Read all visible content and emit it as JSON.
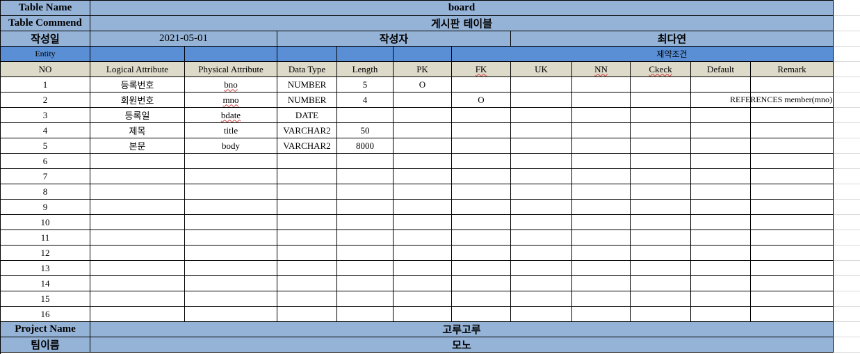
{
  "header": {
    "table_name_label": "Table Name",
    "table_name_value": "board",
    "table_comment_label": "Table Commend",
    "table_comment_value": "게시판 테이블",
    "created_label": "작성일",
    "created_value": "2021-05-01",
    "author_label": "작성자",
    "author_value": "최다연",
    "entity_label": "Entity",
    "constraints_label": "제약조건"
  },
  "columns": [
    "NO",
    "Logical Attribute",
    "Physical Attribute",
    "Data Type",
    "Length",
    "PK",
    "FK",
    "UK",
    "NN",
    "Ckeck",
    "Default",
    "Remark"
  ],
  "rows": [
    {
      "no": "1",
      "logical": "등록번호",
      "physical": "bno",
      "type": "NUMBER",
      "length": "5",
      "pk": "O",
      "fk": "",
      "uk": "",
      "nn": "",
      "check": "",
      "default": "",
      "remark": ""
    },
    {
      "no": "2",
      "logical": "회원번호",
      "physical": "mno",
      "type": "NUMBER",
      "length": "4",
      "pk": "",
      "fk": "O",
      "uk": "",
      "nn": "",
      "check": "",
      "default": "",
      "remark": "REFERENCES member(mno)"
    },
    {
      "no": "3",
      "logical": "등록일",
      "physical": "bdate",
      "type": "DATE",
      "length": "",
      "pk": "",
      "fk": "",
      "uk": "",
      "nn": "",
      "check": "",
      "default": "",
      "remark": ""
    },
    {
      "no": "4",
      "logical": "제목",
      "physical": "title",
      "type": "VARCHAR2",
      "length": "50",
      "pk": "",
      "fk": "",
      "uk": "",
      "nn": "",
      "check": "",
      "default": "",
      "remark": ""
    },
    {
      "no": "5",
      "logical": "본문",
      "physical": "body",
      "type": "VARCHAR2",
      "length": "8000",
      "pk": "",
      "fk": "",
      "uk": "",
      "nn": "",
      "check": "",
      "default": "",
      "remark": ""
    },
    {
      "no": "6",
      "logical": "",
      "physical": "",
      "type": "",
      "length": "",
      "pk": "",
      "fk": "",
      "uk": "",
      "nn": "",
      "check": "",
      "default": "",
      "remark": ""
    },
    {
      "no": "7",
      "logical": "",
      "physical": "",
      "type": "",
      "length": "",
      "pk": "",
      "fk": "",
      "uk": "",
      "nn": "",
      "check": "",
      "default": "",
      "remark": ""
    },
    {
      "no": "8",
      "logical": "",
      "physical": "",
      "type": "",
      "length": "",
      "pk": "",
      "fk": "",
      "uk": "",
      "nn": "",
      "check": "",
      "default": "",
      "remark": ""
    },
    {
      "no": "9",
      "logical": "",
      "physical": "",
      "type": "",
      "length": "",
      "pk": "",
      "fk": "",
      "uk": "",
      "nn": "",
      "check": "",
      "default": "",
      "remark": ""
    },
    {
      "no": "10",
      "logical": "",
      "physical": "",
      "type": "",
      "length": "",
      "pk": "",
      "fk": "",
      "uk": "",
      "nn": "",
      "check": "",
      "default": "",
      "remark": ""
    },
    {
      "no": "11",
      "logical": "",
      "physical": "",
      "type": "",
      "length": "",
      "pk": "",
      "fk": "",
      "uk": "",
      "nn": "",
      "check": "",
      "default": "",
      "remark": ""
    },
    {
      "no": "12",
      "logical": "",
      "physical": "",
      "type": "",
      "length": "",
      "pk": "",
      "fk": "",
      "uk": "",
      "nn": "",
      "check": "",
      "default": "",
      "remark": ""
    },
    {
      "no": "13",
      "logical": "",
      "physical": "",
      "type": "",
      "length": "",
      "pk": "",
      "fk": "",
      "uk": "",
      "nn": "",
      "check": "",
      "default": "",
      "remark": ""
    },
    {
      "no": "14",
      "logical": "",
      "physical": "",
      "type": "",
      "length": "",
      "pk": "",
      "fk": "",
      "uk": "",
      "nn": "",
      "check": "",
      "default": "",
      "remark": ""
    },
    {
      "no": "15",
      "logical": "",
      "physical": "",
      "type": "",
      "length": "",
      "pk": "",
      "fk": "",
      "uk": "",
      "nn": "",
      "check": "",
      "default": "",
      "remark": ""
    },
    {
      "no": "16",
      "logical": "",
      "physical": "",
      "type": "",
      "length": "",
      "pk": "",
      "fk": "",
      "uk": "",
      "nn": "",
      "check": "",
      "default": "",
      "remark": ""
    }
  ],
  "footer": {
    "project_label": "Project Name",
    "project_value": "고루고루",
    "team_label": "팀이름",
    "team_value": "모노"
  },
  "colors": {
    "header_blue": "#95b3d7",
    "entity_blue": "#5a8fd6",
    "column_header_tan": "#dddac9"
  }
}
